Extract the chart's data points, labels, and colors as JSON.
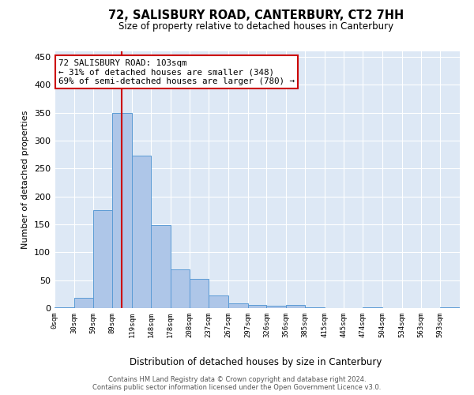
{
  "title": "72, SALISBURY ROAD, CANTERBURY, CT2 7HH",
  "subtitle": "Size of property relative to detached houses in Canterbury",
  "xlabel": "Distribution of detached houses by size in Canterbury",
  "ylabel": "Number of detached properties",
  "bar_color": "#aec6e8",
  "bar_edge_color": "#5b9bd5",
  "background_color": "#dde8f5",
  "grid_color": "#ffffff",
  "vline_x": 103,
  "vline_color": "#cc0000",
  "annotation_title": "72 SALISBURY ROAD: 103sqm",
  "annotation_line1": "← 31% of detached houses are smaller (348)",
  "annotation_line2": "69% of semi-detached houses are larger (780) →",
  "annotation_box_color": "#cc0000",
  "bins": [
    0,
    30,
    59,
    89,
    119,
    148,
    178,
    208,
    237,
    267,
    297,
    326,
    356,
    385,
    415,
    445,
    474,
    504,
    534,
    563,
    593,
    623
  ],
  "bin_labels": [
    "0sqm",
    "30sqm",
    "59sqm",
    "89sqm",
    "119sqm",
    "148sqm",
    "178sqm",
    "208sqm",
    "237sqm",
    "267sqm",
    "297sqm",
    "326sqm",
    "356sqm",
    "385sqm",
    "415sqm",
    "445sqm",
    "474sqm",
    "504sqm",
    "534sqm",
    "563sqm",
    "593sqm"
  ],
  "counts": [
    2,
    18,
    175,
    350,
    273,
    148,
    70,
    53,
    22,
    9,
    5,
    4,
    6,
    2,
    0,
    0,
    2,
    0,
    0,
    0,
    2
  ],
  "ylim": [
    0,
    460
  ],
  "yticks": [
    0,
    50,
    100,
    150,
    200,
    250,
    300,
    350,
    400,
    450
  ],
  "footer_line1": "Contains HM Land Registry data © Crown copyright and database right 2024.",
  "footer_line2": "Contains public sector information licensed under the Open Government Licence v3.0."
}
